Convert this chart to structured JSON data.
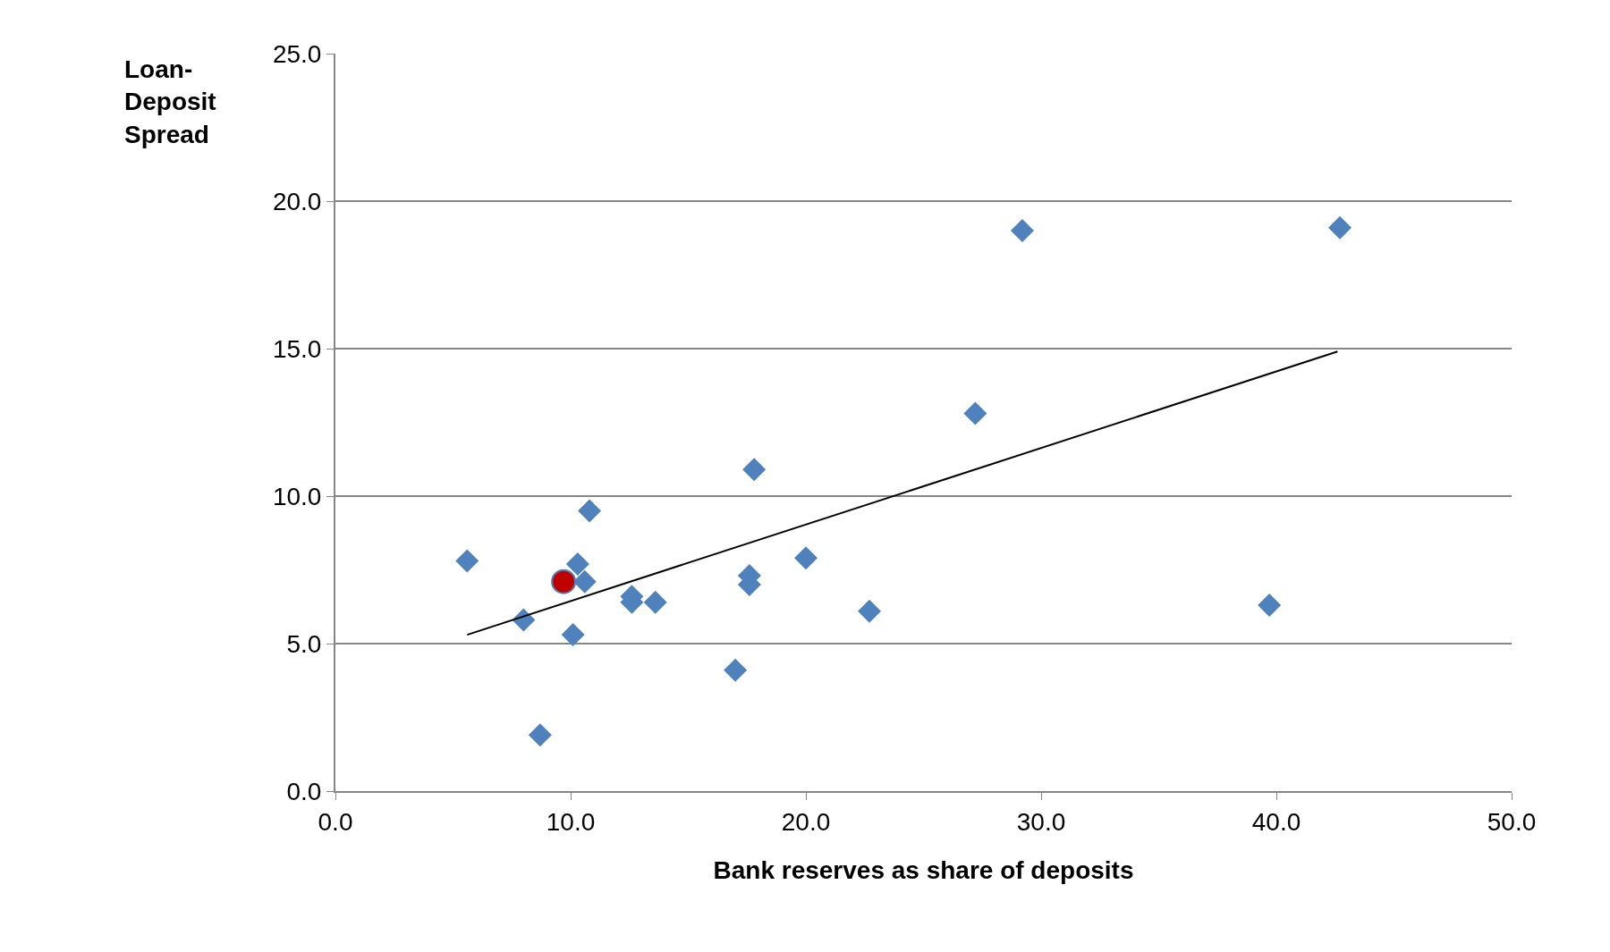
{
  "chart_data": {
    "type": "scatter",
    "xlabel": "Bank reserves as share of deposits",
    "ylabel": "Loan-Deposit Spread",
    "series": [
      {
        "marker": "diamond",
        "color": "#4f81bd",
        "x": [
          5.6,
          8.0,
          8.7,
          10.1,
          10.3,
          10.6,
          10.8,
          12.6,
          12.6,
          13.6,
          17.0,
          17.6,
          17.6,
          17.8,
          20.0,
          22.7,
          27.2,
          29.2,
          39.7,
          42.7
        ],
        "values": [
          7.8,
          5.8,
          1.9,
          5.3,
          7.7,
          7.1,
          9.5,
          6.6,
          6.4,
          6.4,
          4.1,
          7.3,
          7.0,
          10.9,
          7.9,
          6.1,
          12.8,
          19.0,
          6.3,
          19.1
        ]
      },
      {
        "marker": "circle",
        "color": "#c00000",
        "x": [
          9.7
        ],
        "values": [
          7.1
        ]
      },
      {
        "type": "line",
        "marker": "none",
        "color": "#000000",
        "x": [
          5.6,
          42.6
        ],
        "values": [
          5.3,
          14.9
        ]
      }
    ],
    "xlim": [
      0,
      50
    ],
    "xticks": [
      {
        "value": 0,
        "label": "0.0"
      },
      {
        "value": 10,
        "label": "10.0"
      },
      {
        "value": 20,
        "label": "20.0"
      },
      {
        "value": 30,
        "label": "30.0"
      },
      {
        "value": 40,
        "label": "40.0"
      },
      {
        "value": 50,
        "label": "50.0"
      }
    ],
    "ylim": [
      0,
      25
    ],
    "yticks": [
      {
        "value": 0,
        "label": "0.0"
      },
      {
        "value": 5,
        "label": "5.0"
      },
      {
        "value": 10,
        "label": "10.0"
      },
      {
        "value": 15,
        "label": "15.0"
      },
      {
        "value": 20,
        "label": "20.0"
      },
      {
        "value": 25,
        "label": "25.0"
      }
    ],
    "grid": "y",
    "legend": false
  }
}
